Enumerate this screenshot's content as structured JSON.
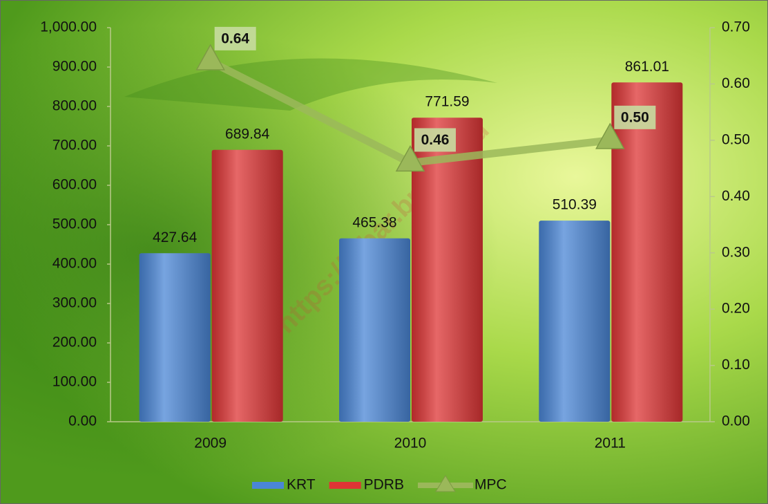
{
  "watermark": "https://jabar.bps.go.id",
  "chart_data": {
    "type": "bar",
    "categories": [
      "2009",
      "2010",
      "2011"
    ],
    "series": [
      {
        "name": "KRT",
        "color": "#4a86d6",
        "values": [
          427.64,
          465.38,
          510.39
        ]
      },
      {
        "name": "PDRB",
        "color": "#de3535",
        "values": [
          689.84,
          771.59,
          861.01
        ]
      },
      {
        "name": "MPC",
        "type": "line",
        "axis": "y2",
        "color": "#9bb85a",
        "values": [
          0.64,
          0.46,
          0.5
        ],
        "value_labels": [
          "0.64",
          "0.46",
          "0.50"
        ]
      }
    ],
    "ylim": [
      0,
      1000
    ],
    "yticks": [
      {
        "value": 0,
        "label": "0.00"
      },
      {
        "value": 100,
        "label": "100.00"
      },
      {
        "value": 200,
        "label": "200.00"
      },
      {
        "value": 300,
        "label": "300.00"
      },
      {
        "value": 400,
        "label": "400.00"
      },
      {
        "value": 500,
        "label": "500.00"
      },
      {
        "value": 600,
        "label": "600.00"
      },
      {
        "value": 700,
        "label": "700.00"
      },
      {
        "value": 800,
        "label": "800.00"
      },
      {
        "value": 900,
        "label": "900.00"
      },
      {
        "value": 1000,
        "label": "1,000.00"
      }
    ],
    "y2lim": [
      0,
      0.7
    ],
    "y2ticks": [
      {
        "value": 0,
        "label": "0.00"
      },
      {
        "value": 0.1,
        "label": "0.10"
      },
      {
        "value": 0.2,
        "label": "0.20"
      },
      {
        "value": 0.3,
        "label": "0.30"
      },
      {
        "value": 0.4,
        "label": "0.40"
      },
      {
        "value": 0.5,
        "label": "0.50"
      },
      {
        "value": 0.6,
        "label": "0.60"
      },
      {
        "value": 0.7,
        "label": "0.70"
      }
    ],
    "legend": "bottom"
  }
}
